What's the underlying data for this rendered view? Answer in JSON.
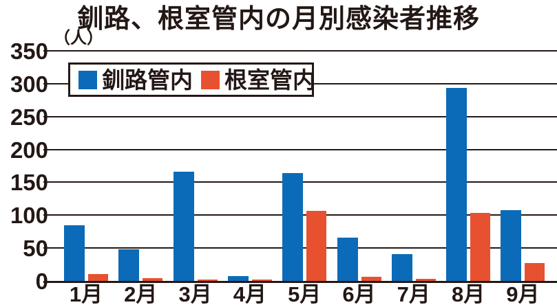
{
  "title": "釧路、根室管内の月別感染者推移",
  "unit_label": "（人）",
  "colors": {
    "kushiro_blue": "#0b6bb8",
    "nemuro_orange": "#e8512f",
    "ink": "#231815",
    "background": "#ffffff"
  },
  "legend": [
    {
      "label": "釧路管内",
      "color": "#0b6bb8"
    },
    {
      "label": "根室管内",
      "color": "#e8512f"
    }
  ],
  "chart_data": {
    "type": "bar",
    "title": "釧路、根室管内の月別感染者推移",
    "ylabel": "（人）",
    "categories": [
      "1月",
      "2月",
      "3月",
      "4月",
      "5月",
      "6月",
      "7月",
      "8月",
      "9月"
    ],
    "series": [
      {
        "name": "釧路管内",
        "color": "#0b6bb8",
        "values": [
          85,
          48,
          166,
          7,
          164,
          66,
          41,
          294,
          108
        ]
      },
      {
        "name": "根室管内",
        "color": "#e8512f",
        "values": [
          10,
          4,
          2,
          1,
          107,
          6,
          3,
          103,
          27
        ]
      }
    ],
    "ylim": [
      0,
      350
    ],
    "yticks": [
      0,
      50,
      100,
      150,
      200,
      250,
      300,
      350
    ],
    "ytick_interval": 50,
    "grid": true,
    "legend_position": "top-left"
  }
}
